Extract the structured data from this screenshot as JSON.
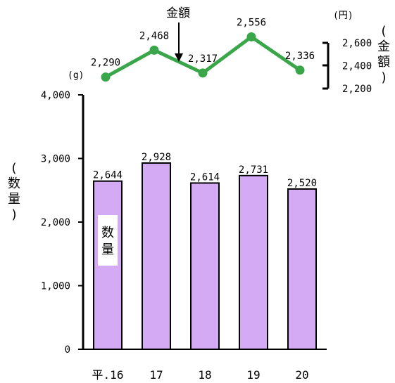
{
  "chart_data": [
    {
      "type": "bar",
      "categories": [
        "平.16",
        "17",
        "18",
        "19",
        "20"
      ],
      "series": [
        {
          "name": "数量",
          "values": [
            2644,
            2928,
            2614,
            2731,
            2520
          ],
          "color": "#d4aaf5"
        }
      ],
      "data_labels": [
        "2,644",
        "2,928",
        "2,614",
        "2,731",
        "2,520"
      ],
      "ylim": [
        0,
        4000
      ],
      "yticks": [
        "4,000",
        "3,000",
        "2,000",
        "1,000",
        "0"
      ],
      "unit": "(g)",
      "ylabel": "(数量)",
      "series_label": "数量"
    },
    {
      "type": "line",
      "categories": [
        "平.16",
        "17",
        "18",
        "19",
        "20"
      ],
      "series": [
        {
          "name": "金額",
          "values": [
            2290,
            2468,
            2317,
            2556,
            2336
          ],
          "color": "#3aa64a"
        }
      ],
      "data_labels": [
        "2,290",
        "2,468",
        "2,317",
        "2,556",
        "2,336"
      ],
      "ylim": [
        2200,
        2600
      ],
      "yticks": [
        "2,600",
        "2,400",
        "2,200"
      ],
      "unit": "(円)",
      "ylabel": "(金額)",
      "series_label": "金額"
    }
  ]
}
